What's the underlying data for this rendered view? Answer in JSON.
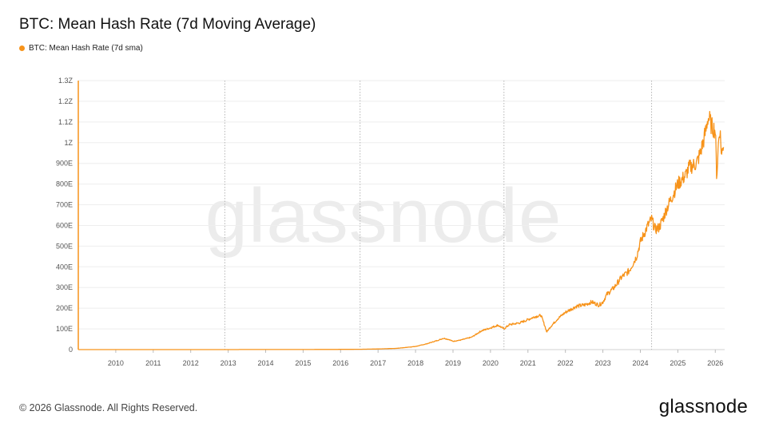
{
  "header": {
    "title": "BTC: Mean Hash Rate (7d Moving Average)"
  },
  "legend": {
    "label": "BTC: Mean Hash Rate (7d sma)"
  },
  "watermark": "glassnode",
  "footer": {
    "copyright": "© 2026 Glassnode. All Rights Reserved.",
    "brand": "glassnode"
  },
  "colors": {
    "series": "#f7931a",
    "grid": "#eeeeee",
    "vline": "#b5b5b5",
    "axis_text": "#555555"
  },
  "chart_data": {
    "type": "line",
    "x_axis_type": "year",
    "xlim": [
      2009.0,
      2026.25
    ],
    "ylim": [
      0,
      1300
    ],
    "y_unit": "EH/s",
    "x_ticks": [
      2010,
      2011,
      2012,
      2013,
      2014,
      2015,
      2016,
      2017,
      2018,
      2019,
      2020,
      2021,
      2022,
      2023,
      2024,
      2025,
      2026
    ],
    "x_tick_labels": [
      "2010",
      "2011",
      "2012",
      "2013",
      "2014",
      "2015",
      "2016",
      "2017",
      "2018",
      "2019",
      "2020",
      "2021",
      "2022",
      "2023",
      "2024",
      "2025",
      "2026"
    ],
    "y_ticks": [
      0,
      100,
      200,
      300,
      400,
      500,
      600,
      700,
      800,
      900,
      1000,
      1100,
      1200,
      1300
    ],
    "y_tick_labels": [
      "0",
      "100E",
      "200E",
      "300E",
      "400E",
      "500E",
      "600E",
      "700E",
      "800E",
      "900E",
      "1Z",
      "1.1Z",
      "1.2Z",
      "1.3Z"
    ],
    "halving_dates": [
      2012.91,
      2016.52,
      2020.36,
      2024.3
    ],
    "grid": true,
    "legend_position": "top-left",
    "series": [
      {
        "name": "BTC: Mean Hash Rate (7d sma)",
        "points": [
          [
            2009.0,
            0
          ],
          [
            2012.0,
            0
          ],
          [
            2014.0,
            0.3
          ],
          [
            2015.0,
            0.4
          ],
          [
            2016.0,
            1
          ],
          [
            2016.5,
            1.5
          ],
          [
            2017.0,
            3
          ],
          [
            2017.5,
            6
          ],
          [
            2018.0,
            15
          ],
          [
            2018.3,
            28
          ],
          [
            2018.6,
            45
          ],
          [
            2018.75,
            55
          ],
          [
            2018.9,
            48
          ],
          [
            2019.0,
            40
          ],
          [
            2019.2,
            46
          ],
          [
            2019.5,
            60
          ],
          [
            2019.75,
            90
          ],
          [
            2020.0,
            105
          ],
          [
            2020.2,
            118
          ],
          [
            2020.36,
            100
          ],
          [
            2020.5,
            120
          ],
          [
            2020.8,
            130
          ],
          [
            2021.0,
            145
          ],
          [
            2021.2,
            160
          ],
          [
            2021.35,
            165
          ],
          [
            2021.45,
            115
          ],
          [
            2021.5,
            85
          ],
          [
            2021.6,
            110
          ],
          [
            2021.8,
            150
          ],
          [
            2022.0,
            180
          ],
          [
            2022.3,
            210
          ],
          [
            2022.5,
            215
          ],
          [
            2022.7,
            230
          ],
          [
            2022.9,
            215
          ],
          [
            2023.0,
            230
          ],
          [
            2023.1,
            265
          ],
          [
            2023.3,
            300
          ],
          [
            2023.5,
            350
          ],
          [
            2023.7,
            380
          ],
          [
            2023.9,
            450
          ],
          [
            2024.0,
            520
          ],
          [
            2024.2,
            600
          ],
          [
            2024.3,
            630
          ],
          [
            2024.4,
            580
          ],
          [
            2024.5,
            590
          ],
          [
            2024.6,
            630
          ],
          [
            2024.7,
            680
          ],
          [
            2024.9,
            760
          ],
          [
            2025.0,
            800
          ],
          [
            2025.1,
            820
          ],
          [
            2025.2,
            840
          ],
          [
            2025.3,
            880
          ],
          [
            2025.5,
            900
          ],
          [
            2025.6,
            950
          ],
          [
            2025.7,
            1020
          ],
          [
            2025.75,
            1060
          ],
          [
            2025.8,
            1120
          ],
          [
            2025.85,
            1110
          ],
          [
            2025.9,
            1080
          ],
          [
            2025.95,
            1070
          ],
          [
            2026.0,
            1060
          ],
          [
            2026.04,
            830
          ],
          [
            2026.08,
            990
          ],
          [
            2026.12,
            1070
          ],
          [
            2026.17,
            940
          ],
          [
            2026.22,
            1000
          ]
        ]
      }
    ]
  }
}
